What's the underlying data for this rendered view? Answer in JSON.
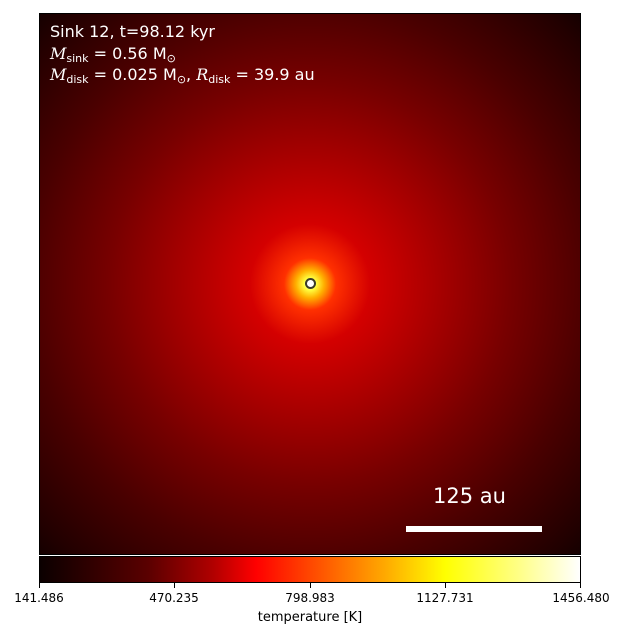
{
  "annotation": {
    "line1": "Sink 12, t=98.12 kyr",
    "m_sink_symbol": "M",
    "m_sink_sub": "sink",
    "m_sink_value": " = 0.56 M",
    "m_sink_unit_sub": "⊙",
    "m_disk_symbol": "M",
    "m_disk_sub": "disk",
    "m_disk_value": " = 0.025 M",
    "m_disk_unit_sub": "⊙",
    "r_disk_symbol": "R",
    "r_disk_sub": "disk",
    "r_disk_value": " = 39.9 au"
  },
  "scale_bar": {
    "label": "125 au"
  },
  "colorbar": {
    "ticks": [
      "141.486",
      "470.235",
      "798.983",
      "1127.731",
      "1456.480"
    ],
    "label": "temperature [K]",
    "colormap": "hot"
  },
  "marker": {
    "fill": "#ffffff",
    "edge": "#3a3a2a"
  }
}
